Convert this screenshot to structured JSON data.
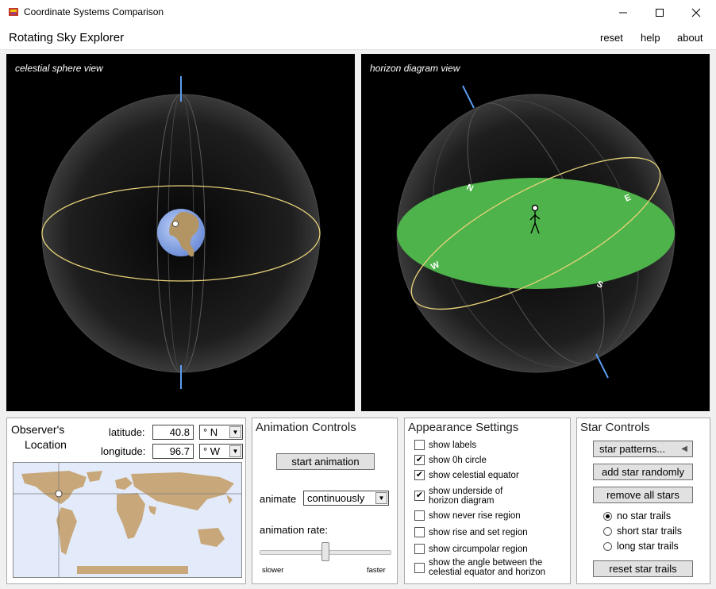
{
  "window": {
    "title": "Coordinate Systems Comparison"
  },
  "app": {
    "title": "Rotating Sky Explorer",
    "menu": [
      "reset",
      "help",
      "about"
    ]
  },
  "views": {
    "left_label": "celestial sphere view",
    "right_label": "horizon diagram view"
  },
  "horizon": {
    "north": "N",
    "east": "E",
    "south": "S",
    "west": "W"
  },
  "observer": {
    "title_line1": "Observer's",
    "title_line2": "Location",
    "latitude_label": "latitude:",
    "latitude_value": "40.8",
    "latitude_dir": "° N",
    "longitude_label": "longitude:",
    "longitude_value": "96.7",
    "longitude_dir": "° W"
  },
  "animation": {
    "title": "Animation Controls",
    "start_button": "start animation",
    "animate_label": "animate",
    "animate_mode": "continuously",
    "rate_label": "animation rate:",
    "slower": "slower",
    "faster": "faster",
    "rate_fraction": 0.5
  },
  "appearance": {
    "title": "Appearance Settings",
    "items": [
      {
        "label": "show labels",
        "checked": false
      },
      {
        "label": "show 0h circle",
        "checked": true
      },
      {
        "label": "show celestial equator",
        "checked": true
      },
      {
        "label": "show underside of horizon diagram",
        "checked": true
      },
      {
        "label": "show never rise region",
        "checked": false
      },
      {
        "label": "show rise and set region",
        "checked": false
      },
      {
        "label": "show circumpolar region",
        "checked": false
      },
      {
        "label": "show the angle between the celestial equator and horizon",
        "checked": false
      }
    ]
  },
  "stars": {
    "title": "Star Controls",
    "patterns_button": "star patterns...",
    "add_button": "add star randomly",
    "remove_button": "remove all stars",
    "trail_options": [
      "no star trails",
      "short star trails",
      "long star trails"
    ],
    "selected_trail": 0,
    "reset_button": "reset star trails"
  },
  "colors": {
    "horizon_plane": "#4db34a",
    "equator": "#e8d27a",
    "pole_axis": "#5b9df0"
  }
}
